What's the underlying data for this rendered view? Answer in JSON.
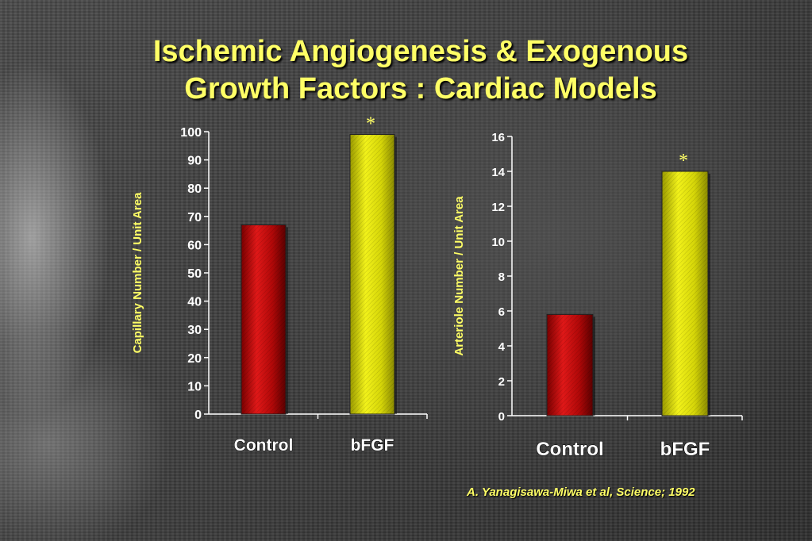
{
  "slide": {
    "title_line1": "Ischemic Angiogenesis & Exogenous",
    "title_line2": "Growth Factors : Cardiac Models",
    "citation": "A. Yanagisawa-Miwa et al,  Science; 1992"
  },
  "colors": {
    "title": "#ffff66",
    "control_bar": "#cc1111",
    "bfgf_bar": "#e5e512",
    "axis_text": "#ffffff"
  },
  "chart_data": [
    {
      "type": "bar",
      "categories": [
        "Control",
        "bFGF"
      ],
      "values": [
        67,
        99
      ],
      "ylabel": "Capillary Number / Unit Area",
      "xlabel": "",
      "ylim": [
        0,
        100
      ],
      "yticks": [
        "0",
        "10",
        "20",
        "30",
        "40",
        "50",
        "60",
        "70",
        "80",
        "90",
        "100"
      ],
      "annotations": [
        {
          "category": "bFGF",
          "text": "*"
        }
      ]
    },
    {
      "type": "bar",
      "categories": [
        "Control",
        "bFGF"
      ],
      "values": [
        5.8,
        14
      ],
      "ylabel": "Arteriole Number / Unit Area",
      "xlabel": "",
      "ylim": [
        0,
        16
      ],
      "yticks": [
        "0",
        "2",
        "4",
        "6",
        "8",
        "10",
        "12",
        "14",
        "16"
      ],
      "annotations": [
        {
          "category": "bFGF",
          "text": "*"
        }
      ]
    }
  ]
}
